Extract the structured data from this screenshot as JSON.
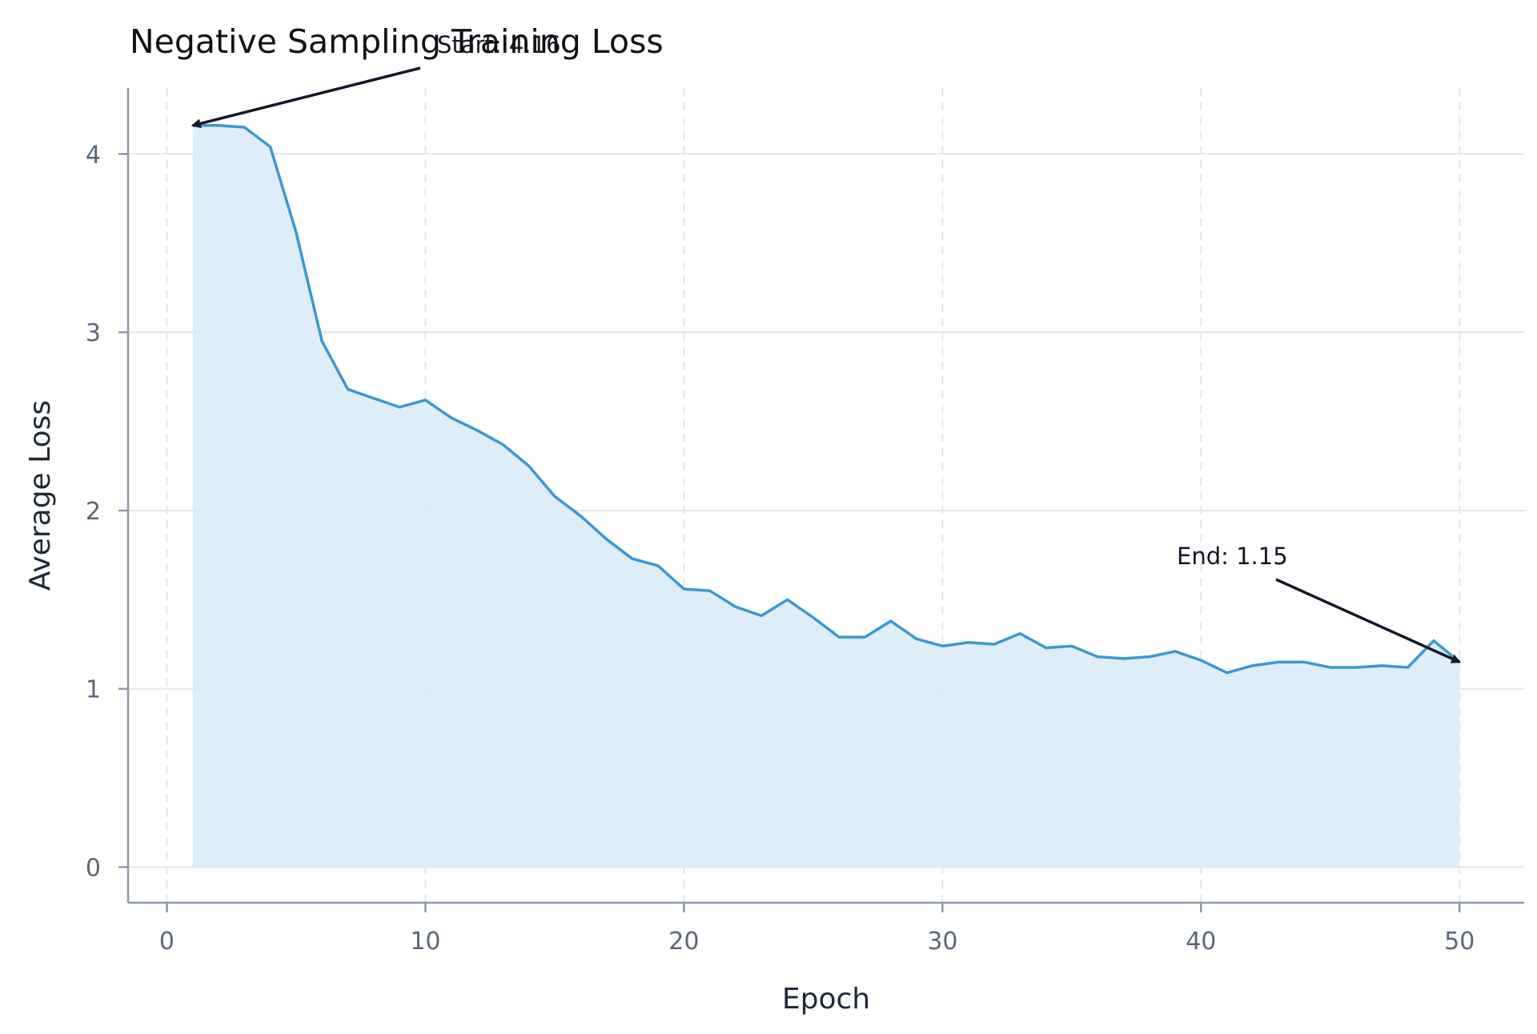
{
  "chart_data": {
    "type": "area",
    "title": "Negative Sampling Training Loss",
    "xlabel": "Epoch",
    "ylabel": "Average Loss",
    "xlim": [
      -1.5,
      52.5
    ],
    "ylim": [
      -0.2,
      4.37
    ],
    "xticks": [
      0,
      10,
      20,
      30,
      40,
      50
    ],
    "yticks": [
      0,
      1,
      2,
      3,
      4
    ],
    "grid": true,
    "colors": {
      "line": "#3b97d3",
      "fill": "#dcebf8",
      "annotation": "#111827"
    },
    "x": [
      1,
      2,
      3,
      4,
      5,
      6,
      7,
      8,
      9,
      10,
      11,
      12,
      13,
      14,
      15,
      16,
      17,
      18,
      19,
      20,
      21,
      22,
      23,
      24,
      25,
      26,
      27,
      28,
      29,
      30,
      31,
      32,
      33,
      34,
      35,
      36,
      37,
      38,
      39,
      40,
      41,
      42,
      43,
      44,
      45,
      46,
      47,
      48,
      49,
      50
    ],
    "series": [
      {
        "values": [
          4.16,
          4.16,
          4.15,
          4.04,
          3.56,
          2.95,
          2.68,
          2.63,
          2.58,
          2.62,
          2.52,
          2.45,
          2.37,
          2.25,
          2.08,
          1.97,
          1.84,
          1.73,
          1.69,
          1.56,
          1.55,
          1.46,
          1.41,
          1.5,
          1.4,
          1.29,
          1.29,
          1.38,
          1.28,
          1.24,
          1.26,
          1.25,
          1.31,
          1.23,
          1.24,
          1.18,
          1.17,
          1.18,
          1.21,
          1.16,
          1.09,
          1.13,
          1.15,
          1.15,
          1.12,
          1.12,
          1.13,
          1.12,
          1.27,
          1.15
        ]
      }
    ],
    "annotations": [
      {
        "text": "Start: 4.16",
        "target_x": 1,
        "target_y": 4.16
      },
      {
        "text": "End: 1.15",
        "target_x": 50,
        "target_y": 1.15
      }
    ]
  }
}
